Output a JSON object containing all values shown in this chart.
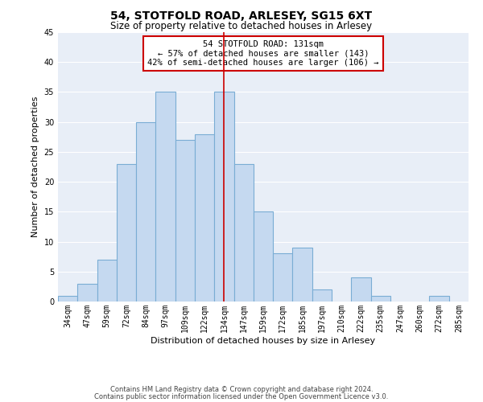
{
  "title": "54, STOTFOLD ROAD, ARLESEY, SG15 6XT",
  "subtitle": "Size of property relative to detached houses in Arlesey",
  "xlabel": "Distribution of detached houses by size in Arlesey",
  "ylabel": "Number of detached properties",
  "footer_lines": [
    "Contains HM Land Registry data © Crown copyright and database right 2024.",
    "Contains public sector information licensed under the Open Government Licence v3.0."
  ],
  "bar_labels": [
    "34sqm",
    "47sqm",
    "59sqm",
    "72sqm",
    "84sqm",
    "97sqm",
    "109sqm",
    "122sqm",
    "134sqm",
    "147sqm",
    "159sqm",
    "172sqm",
    "185sqm",
    "197sqm",
    "210sqm",
    "222sqm",
    "235sqm",
    "247sqm",
    "260sqm",
    "272sqm",
    "285sqm"
  ],
  "bar_values": [
    1,
    3,
    7,
    23,
    30,
    35,
    27,
    28,
    35,
    23,
    15,
    8,
    9,
    2,
    0,
    4,
    1,
    0,
    0,
    1,
    0
  ],
  "bar_color": "#c5d9f0",
  "bar_edge_color": "#7aadd4",
  "highlight_bar_index": 8,
  "highlight_line_color": "#cc0000",
  "ylim": [
    0,
    45
  ],
  "yticks": [
    0,
    5,
    10,
    15,
    20,
    25,
    30,
    35,
    40,
    45
  ],
  "annotation_title": "54 STOTFOLD ROAD: 131sqm",
  "annotation_line1": "← 57% of detached houses are smaller (143)",
  "annotation_line2": "42% of semi-detached houses are larger (106) →",
  "annotation_box_color": "#ffffff",
  "annotation_box_edge_color": "#cc0000",
  "background_color": "#ffffff",
  "grid_color": "#ffffff",
  "plot_bg_color": "#e8eef7",
  "title_fontsize": 10,
  "subtitle_fontsize": 8.5,
  "axis_label_fontsize": 8,
  "tick_fontsize": 7,
  "footer_fontsize": 6,
  "annotation_fontsize": 7.5
}
